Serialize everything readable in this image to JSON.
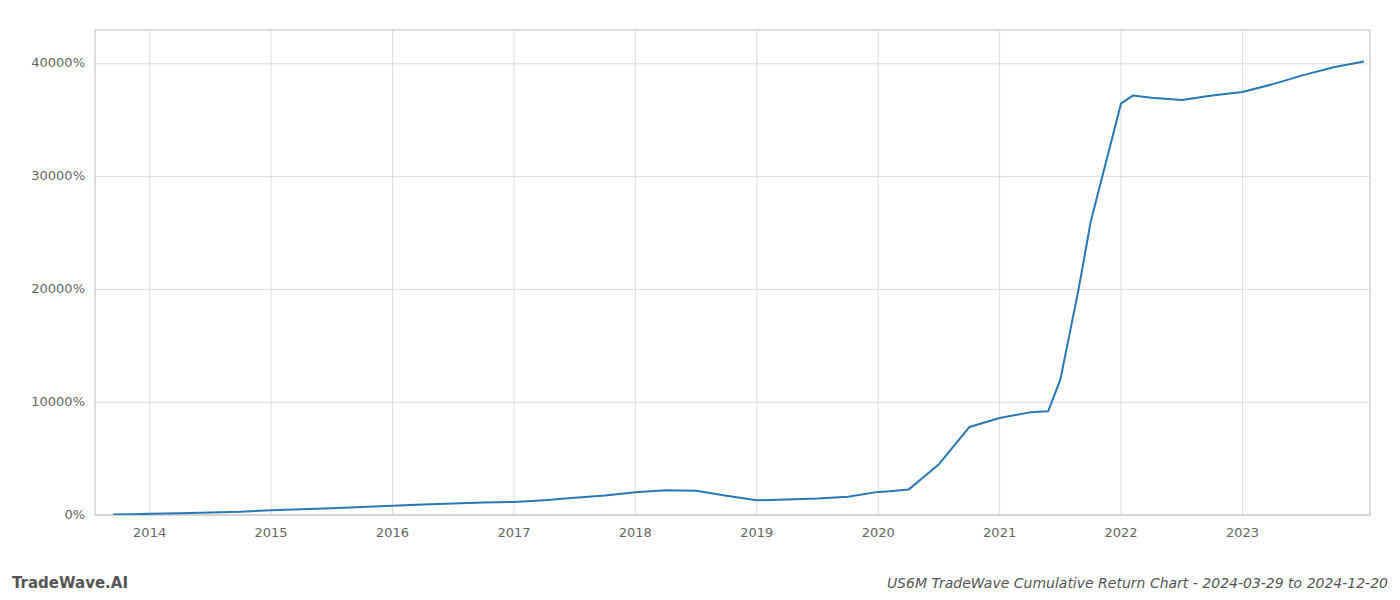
{
  "chart_data": {
    "type": "line",
    "title": "US6M TradeWave Cumulative Return Chart - 2024-03-29 to 2024-12-20",
    "annotations": [
      "TradeWave.AI"
    ],
    "color": "#2878b5",
    "grid": true,
    "x": [
      2013.7,
      2013.85,
      2014.0,
      2014.25,
      2014.5,
      2014.75,
      2015.0,
      2015.25,
      2015.5,
      2015.75,
      2016.0,
      2016.25,
      2016.5,
      2016.75,
      2017.0,
      2017.25,
      2017.5,
      2017.75,
      2018.0,
      2018.25,
      2018.5,
      2018.75,
      2019.0,
      2019.25,
      2019.5,
      2019.75,
      2020.0,
      2020.1,
      2020.25,
      2020.5,
      2020.75,
      2021.0,
      2021.25,
      2021.4,
      2021.5,
      2021.65,
      2021.75,
      2022.0,
      2022.1,
      2022.25,
      2022.5,
      2022.75,
      2023.0,
      2023.25,
      2023.5,
      2023.75,
      2024.0
    ],
    "values": [
      50,
      60,
      100,
      150,
      220,
      290,
      420,
      520,
      600,
      700,
      820,
      920,
      1010,
      1100,
      1160,
      1310,
      1520,
      1720,
      2010,
      2200,
      2150,
      1700,
      1300,
      1380,
      1460,
      1620,
      2050,
      2100,
      2250,
      4500,
      7800,
      8600,
      9100,
      9200,
      12000,
      20000,
      26000,
      36500,
      37200,
      37000,
      36800,
      37200,
      37500,
      38200,
      39000,
      39700,
      40200
    ],
    "xlim": [
      2013.55,
      2024.05
    ],
    "xticks": [
      2014,
      2015,
      2016,
      2017,
      2018,
      2019,
      2020,
      2021,
      2022,
      2023
    ],
    "ylim": [
      0,
      43000
    ],
    "yticks": [
      {
        "value": 0,
        "label": "0%"
      },
      {
        "value": 10000,
        "label": "10000%"
      },
      {
        "value": 20000,
        "label": "20000%"
      },
      {
        "value": 30000,
        "label": "30000%"
      },
      {
        "value": 40000,
        "label": "40000%"
      }
    ]
  }
}
